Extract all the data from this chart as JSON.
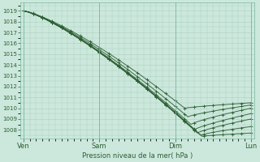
{
  "title": "Pression niveau de la mer( hPa )",
  "background_color": "#cce8dc",
  "grid_color": "#aacfbf",
  "line_color": "#2d5e34",
  "marker_color": "#2d5e34",
  "ylim": [
    1007.2,
    1019.8
  ],
  "yticks": [
    1008,
    1009,
    1010,
    1011,
    1012,
    1013,
    1014,
    1015,
    1016,
    1017,
    1018,
    1019
  ],
  "xtick_labels": [
    "Ven",
    "Sam",
    "Dim",
    "Lun"
  ],
  "xtick_positions": [
    0,
    48,
    96,
    144
  ],
  "num_points": 145,
  "xlim": [
    -2,
    146
  ]
}
